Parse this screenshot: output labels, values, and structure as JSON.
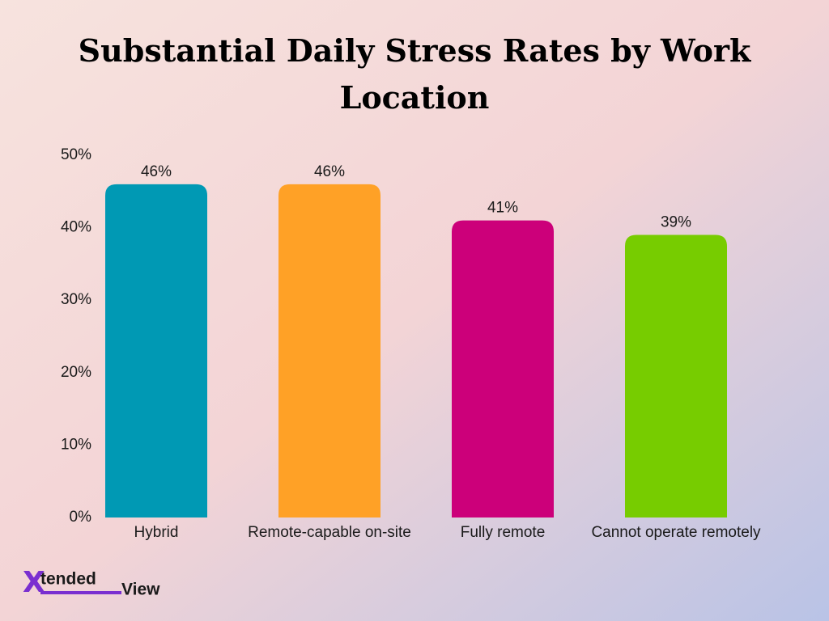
{
  "chart_data": {
    "type": "bar",
    "title": "Substantial Daily Stress Rates by Work Location",
    "categories": [
      "Hybrid",
      "Remote-capable on-site",
      "Fully remote",
      "Cannot operate remotely"
    ],
    "values": [
      46,
      46,
      41,
      39
    ],
    "value_labels": [
      "46%",
      "46%",
      "41%",
      "39%"
    ],
    "colors": [
      "#0099b4",
      "#ffa126",
      "#cc007a",
      "#77cc00"
    ],
    "ylim": [
      0,
      50
    ],
    "yticks": [
      {
        "value": 0,
        "label": "0%"
      },
      {
        "value": 10,
        "label": "10%"
      },
      {
        "value": 20,
        "label": "20%"
      },
      {
        "value": 30,
        "label": "30%"
      },
      {
        "value": 40,
        "label": "40%"
      },
      {
        "value": 50,
        "label": "50%"
      }
    ],
    "grid": false
  },
  "brand": {
    "mark": "X",
    "first": "tended",
    "second": "View"
  }
}
